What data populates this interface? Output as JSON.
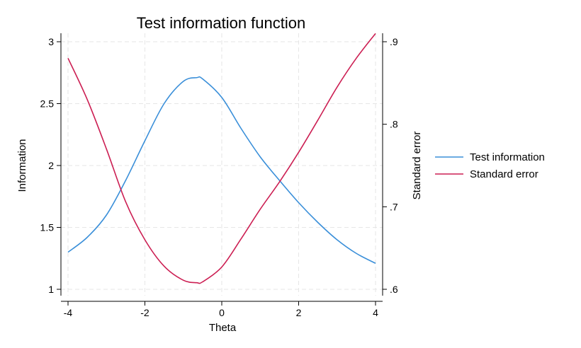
{
  "chart_data": {
    "type": "line",
    "title": "Test information function",
    "xlabel": "Theta",
    "ylabel": "Information",
    "y2label": "Standard error",
    "xlim": [
      -4,
      4
    ],
    "ylim": [
      1,
      3
    ],
    "y2lim": [
      0.6,
      0.9
    ],
    "xticks": [
      "-4",
      "-2",
      "0",
      "2",
      "4"
    ],
    "yticks": [
      "1",
      "1.5",
      "2",
      "2.5",
      "3"
    ],
    "y2ticks": [
      ".6",
      ".7",
      ".8",
      ".9"
    ],
    "grid": true,
    "legend_position": "right",
    "x": [
      -4,
      -3.5,
      -3,
      -2.5,
      -2,
      -1.5,
      -1,
      -0.65,
      -0.5,
      0,
      0.5,
      1,
      1.5,
      2,
      2.5,
      3,
      3.5,
      4
    ],
    "series": [
      {
        "name": "Test information",
        "axis": "left",
        "color": "#3a8fd9",
        "values": [
          1.3,
          1.42,
          1.6,
          1.88,
          2.2,
          2.5,
          2.68,
          2.71,
          2.7,
          2.55,
          2.3,
          2.07,
          1.88,
          1.7,
          1.54,
          1.4,
          1.29,
          1.21
        ]
      },
      {
        "name": "Standard error",
        "axis": "right",
        "color": "#cc1f53",
        "values": [
          0.88,
          0.83,
          0.77,
          0.706,
          0.66,
          0.628,
          0.611,
          0.608,
          0.609,
          0.627,
          0.661,
          0.697,
          0.73,
          0.766,
          0.805,
          0.845,
          0.88,
          0.91
        ]
      }
    ]
  }
}
